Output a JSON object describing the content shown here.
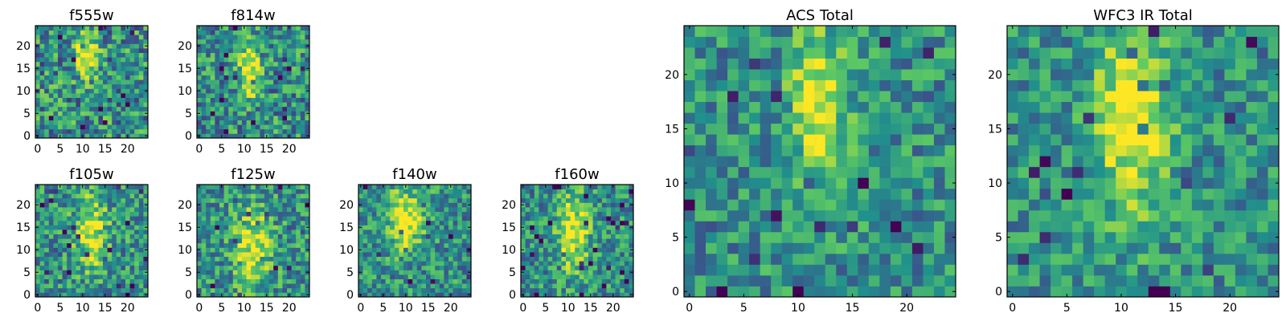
{
  "figure": {
    "colormap": "viridis",
    "background": "#ffffff",
    "frame_color": "#000000"
  },
  "chart_data": [
    {
      "type": "heatmap",
      "title": "f555w",
      "grid": [
        25,
        25
      ],
      "x_ticks": [
        "0",
        "5",
        "10",
        "15",
        "20"
      ],
      "y_ticks": [
        "0",
        "5",
        "10",
        "15",
        "20"
      ],
      "xlim": [
        -0.5,
        24.5
      ],
      "ylim": [
        -0.5,
        24.5
      ],
      "source_peak": [
        11,
        18
      ],
      "source_spread": [
        1.6,
        3.5
      ],
      "source_amp": 0.55,
      "noise": 0.32,
      "seed": 11
    },
    {
      "type": "heatmap",
      "title": "f814w",
      "grid": [
        25,
        25
      ],
      "x_ticks": [
        "0",
        "5",
        "10",
        "15",
        "20"
      ],
      "y_ticks": [
        "0",
        "5",
        "10",
        "15",
        "20"
      ],
      "xlim": [
        -0.5,
        24.5
      ],
      "ylim": [
        -0.5,
        24.5
      ],
      "source_peak": [
        11,
        15
      ],
      "source_spread": [
        1.6,
        4.5
      ],
      "source_amp": 0.55,
      "noise": 0.3,
      "seed": 23
    },
    {
      "type": "heatmap",
      "title": "f105w",
      "grid": [
        25,
        25
      ],
      "x_ticks": [
        "0",
        "5",
        "10",
        "15",
        "20"
      ],
      "y_ticks": [
        "0",
        "5",
        "10",
        "15",
        "20"
      ],
      "xlim": [
        -0.5,
        24.5
      ],
      "ylim": [
        -0.5,
        24.5
      ],
      "source_peak": [
        12,
        14
      ],
      "source_spread": [
        2.5,
        6.0
      ],
      "source_amp": 0.45,
      "noise": 0.28,
      "seed": 37
    },
    {
      "type": "heatmap",
      "title": "f125w",
      "grid": [
        25,
        25
      ],
      "x_ticks": [
        "0",
        "5",
        "10",
        "15",
        "20"
      ],
      "y_ticks": [
        "0",
        "5",
        "10",
        "15",
        "20"
      ],
      "xlim": [
        -0.5,
        24.5
      ],
      "ylim": [
        -0.5,
        24.5
      ],
      "source_peak": [
        12,
        10
      ],
      "source_spread": [
        2.8,
        6.5
      ],
      "source_amp": 0.45,
      "noise": 0.28,
      "seed": 41
    },
    {
      "type": "heatmap",
      "title": "f140w",
      "grid": [
        25,
        25
      ],
      "x_ticks": [
        "0",
        "5",
        "10",
        "15",
        "20"
      ],
      "y_ticks": [
        "0",
        "5",
        "10",
        "15",
        "20"
      ],
      "xlim": [
        -0.5,
        24.5
      ],
      "ylim": [
        -0.5,
        24.5
      ],
      "source_peak": [
        10,
        17
      ],
      "source_spread": [
        3.0,
        5.0
      ],
      "source_amp": 0.5,
      "noise": 0.26,
      "seed": 53
    },
    {
      "type": "heatmap",
      "title": "f160w",
      "grid": [
        25,
        25
      ],
      "x_ticks": [
        "0",
        "5",
        "10",
        "15",
        "20"
      ],
      "y_ticks": [
        "0",
        "5",
        "10",
        "15",
        "20"
      ],
      "xlim": [
        -0.5,
        24.5
      ],
      "ylim": [
        -0.5,
        24.5
      ],
      "source_peak": [
        11,
        14
      ],
      "source_spread": [
        2.5,
        6.0
      ],
      "source_amp": 0.5,
      "noise": 0.26,
      "seed": 67
    },
    {
      "type": "heatmap",
      "title": "ACS Total",
      "grid": [
        25,
        25
      ],
      "x_ticks": [
        "0",
        "5",
        "10",
        "15",
        "20"
      ],
      "y_ticks": [
        "0",
        "5",
        "10",
        "15",
        "20"
      ],
      "xlim": [
        -0.5,
        24.5
      ],
      "ylim": [
        -0.5,
        24.5
      ],
      "source_peak": [
        12,
        17
      ],
      "source_spread": [
        1.8,
        5.0
      ],
      "source_amp": 0.5,
      "noise": 0.24,
      "seed": 79
    },
    {
      "type": "heatmap",
      "title": "WFC3 IR Total",
      "grid": [
        25,
        25
      ],
      "x_ticks": [
        "0",
        "5",
        "10",
        "15",
        "20"
      ],
      "y_ticks": [
        "0",
        "5",
        "10",
        "15",
        "20"
      ],
      "xlim": [
        -0.5,
        24.5
      ],
      "ylim": [
        -0.5,
        24.5
      ],
      "source_peak": [
        11,
        16
      ],
      "source_spread": [
        2.4,
        6.5
      ],
      "source_amp": 0.5,
      "noise": 0.22,
      "seed": 97
    }
  ]
}
